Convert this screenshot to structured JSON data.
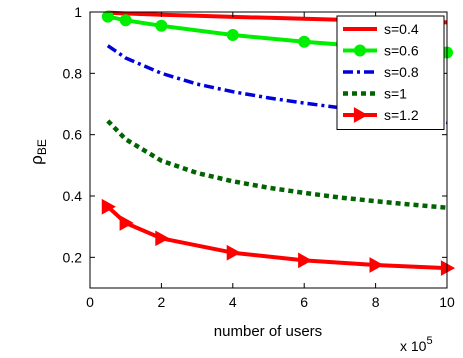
{
  "chart_data": {
    "type": "line",
    "title": "",
    "xlabel": "number of users",
    "ylabel_main": "ρ",
    "ylabel_sub": "BE",
    "x_multiplier_base": "x 10",
    "x_multiplier_exp": "5",
    "xlim": [
      0,
      10
    ],
    "ylim": [
      0.1,
      1.0
    ],
    "xticks": [
      0,
      2,
      4,
      6,
      8,
      10
    ],
    "yticks": [
      0.2,
      0.4,
      0.6,
      0.8,
      1
    ],
    "xtick_labels": [
      "0",
      "2",
      "4",
      "6",
      "8",
      "10"
    ],
    "ytick_labels": [
      "0.2",
      "0.4",
      "0.6",
      "0.8",
      "1"
    ],
    "grid": false,
    "legend_position": "top-right",
    "series": [
      {
        "name": "s=0.4",
        "color": "#ff0000",
        "style": "solid",
        "marker": "none",
        "x": [
          0.5,
          1,
          2,
          3,
          4,
          5,
          6,
          7,
          8,
          9,
          10
        ],
        "y": [
          0.998,
          0.995,
          0.991,
          0.988,
          0.984,
          0.981,
          0.978,
          0.975,
          0.972,
          0.969,
          0.966
        ]
      },
      {
        "name": "s=0.6",
        "color": "#00ee00",
        "style": "solid",
        "marker": "circle",
        "x": [
          0.5,
          1,
          2,
          4,
          6,
          8,
          10
        ],
        "y": [
          0.985,
          0.973,
          0.955,
          0.925,
          0.903,
          0.885,
          0.868
        ]
      },
      {
        "name": "s=0.8",
        "color": "#0000dd",
        "style": "dashdot",
        "marker": "none",
        "x": [
          0.5,
          1,
          2,
          3,
          4,
          5,
          6,
          7,
          8,
          9,
          10
        ],
        "y": [
          0.89,
          0.85,
          0.8,
          0.765,
          0.74,
          0.72,
          0.703,
          0.688,
          0.675,
          0.663,
          0.64
        ]
      },
      {
        "name": "s=1",
        "color": "#006400",
        "style": "dotted",
        "marker": "none",
        "x": [
          0.5,
          1,
          2,
          3,
          4,
          5,
          6,
          7,
          8,
          9,
          10
        ],
        "y": [
          0.645,
          0.585,
          0.515,
          0.475,
          0.448,
          0.427,
          0.41,
          0.395,
          0.383,
          0.372,
          0.362
        ]
      },
      {
        "name": "s=1.2",
        "color": "#ff0000",
        "style": "solid",
        "marker": "triangle-right",
        "x": [
          0.5,
          1,
          2,
          4,
          6,
          8,
          10
        ],
        "y": [
          0.365,
          0.312,
          0.262,
          0.215,
          0.19,
          0.175,
          0.165
        ]
      }
    ]
  }
}
